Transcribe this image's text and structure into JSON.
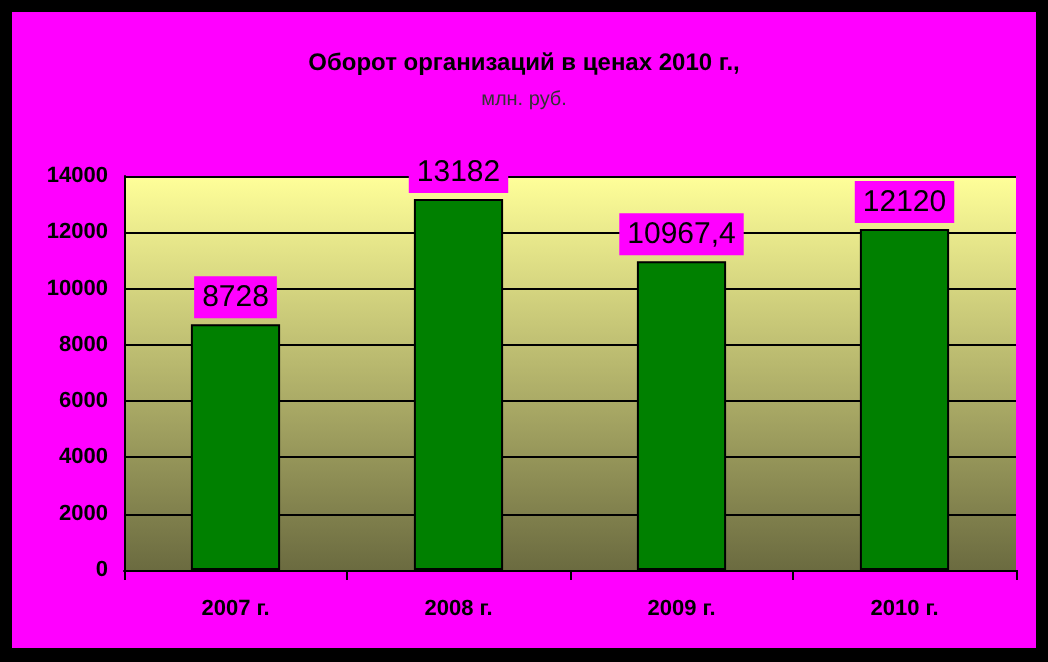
{
  "chart_data": {
    "type": "bar",
    "title": "Оборот организаций в ценах 2010 г.,",
    "subtitle": "млн. руб.",
    "categories": [
      "2007 г.",
      "2008 г.",
      "2009 г.",
      "2010 г."
    ],
    "values": [
      8728,
      13182,
      10967.4,
      12120
    ],
    "value_labels": [
      "8728",
      "13182",
      "10967,4",
      "12120"
    ],
    "color": "#008000",
    "ylim": [
      0,
      14000
    ],
    "yticks": [
      0,
      2000,
      4000,
      6000,
      8000,
      10000,
      12000,
      14000
    ],
    "grid": "y"
  }
}
